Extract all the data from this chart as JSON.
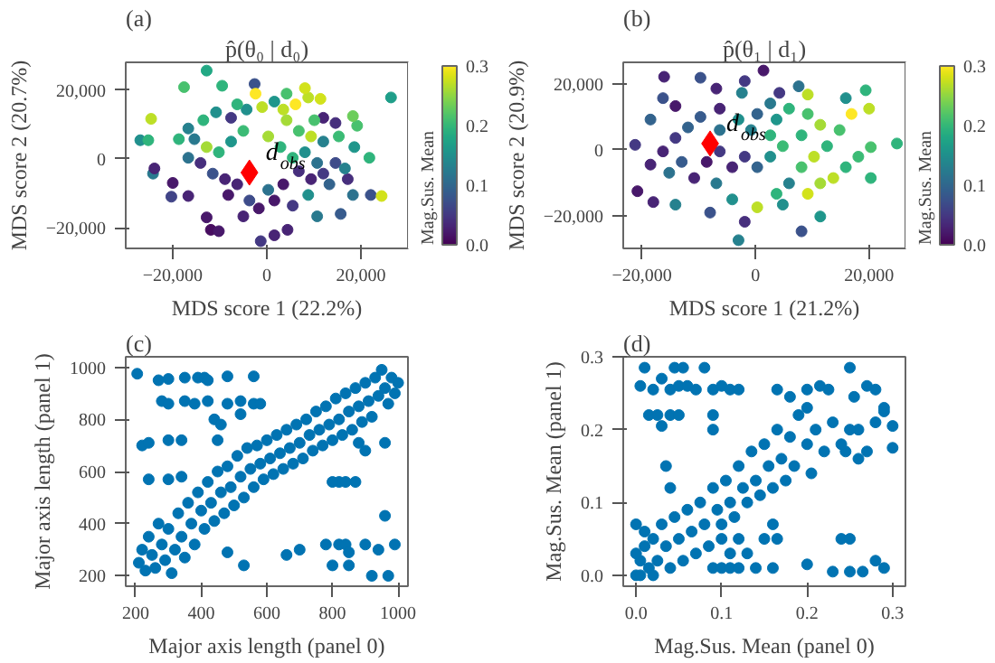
{
  "chart_data": [
    {
      "type": "scatter",
      "title": "p̂(θ₀ | d₀)",
      "annotations": [
        "(a)"
      ],
      "xlabel": "MDS score 1 (22.2%)",
      "ylabel": "MDS score 2 (20.7%)",
      "clabel": "Mag.Sus. Mean",
      "xlim": [
        -30000,
        30000
      ],
      "ylim": [
        -26000,
        28000
      ],
      "xticks": [
        {
          "value": -20000,
          "label": "−20,000"
        },
        0,
        {
          "value": 20000,
          "label": "20,000"
        }
      ],
      "yticks": [
        {
          "value": -20000,
          "label": "−20,000"
        },
        0,
        {
          "value": 20000,
          "label": "20,000"
        }
      ],
      "clim": [
        0,
        0.3
      ],
      "cticks": [
        {
          "value": 0,
          "label": "0.0"
        },
        0.1,
        0.2,
        0.3
      ],
      "marker": "circle",
      "series": [
        {
          "x": [
            -12800,
            26400,
            -2600,
            -17600,
            -9500,
            -24600,
            -26900,
            -25200,
            -24200,
            -23900,
            -20000,
            -20300,
            -16700,
            -12800,
            -11900,
            -10200,
            -1300,
            1600,
            4400,
            10700,
            15700,
            18300,
            22100,
            24400,
            21800,
            18600,
            19200,
            18300,
            15300,
            12000,
            11400,
            8800,
            6100,
            3500,
            4200,
            6800,
            9400,
            12000,
            -2400,
            -1000,
            -4300,
            -6300,
            -7600,
            -10800,
            -13500,
            -16700,
            -18700,
            -15400,
            -12800,
            -10200,
            -7600,
            -5000,
            300,
            2900,
            5500,
            8100,
            10700,
            14600,
            12000,
            9400,
            6800,
            3500,
            300,
            1600,
            -1700,
            -3700,
            -6300,
            -8900,
            -11500,
            -14100,
            -16700,
            -8200,
            -5000,
            5500,
            8800,
            13300,
            17200,
            16600,
            10100,
            14600,
            1600,
            4200,
            8100
          ],
          "values": [
            25600,
            17800,
            21700,
            20800,
            21200,
            11600,
            5400,
            5400,
            -4300,
            -2800,
            -7000,
            -11000,
            -10800,
            -17000,
            -20600,
            -21000,
            -23900,
            -22200,
            -20600,
            -16700,
            -16000,
            -10500,
            -10500,
            -10800,
            300,
            3400,
            9600,
            12400,
            6500,
            11900,
            17400,
            17800,
            15800,
            14300,
            11200,
            8100,
            6500,
            5000,
            18900,
            15000,
            14300,
            15800,
            11900,
            13500,
            11200,
            8800,
            5700,
            5700,
            3400,
            1900,
            5000,
            8100,
            6500,
            3400,
            300,
            1900,
            -1200,
            -1200,
            -4300,
            -5900,
            -3600,
            -7400,
            -9000,
            -12100,
            -14400,
            -12100,
            -7400,
            -5900,
            -4300,
            -1200,
            300,
            -10500,
            -16700,
            -13600,
            -10500,
            -7400,
            -5900,
            -2800,
            11200,
            10400,
            16600,
            18900,
            20500
          ],
          "colors": [
            "#22a884",
            "#1f9e89",
            "#3b528b",
            "#48c16e",
            "#2fb47c",
            "#bddf26",
            "#21908d",
            "#2fb47c",
            "#29798e",
            "#482475",
            "#48186a",
            "#414487",
            "#482475",
            "#48186a",
            "#470d60",
            "#48186a",
            "#443983",
            "#482475",
            "#482475",
            "#29798e",
            "#375b8d",
            "#2c728e",
            "#3b528b",
            "#d2e21b",
            "#2fb47c",
            "#1f968b",
            "#48c16e",
            "#6ccd5a",
            "#3bbb75",
            "#482475",
            "#d2e21b",
            "#bddf26",
            "#fde725",
            "#bddf26",
            "#a5db36",
            "#48c16e",
            "#bddf26",
            "#26818e",
            "#fde725",
            "#bddf26",
            "#21908d",
            "#2fb47c",
            "#443983",
            "#21908d",
            "#2fb47c",
            "#26818e",
            "#2fb47c",
            "#29798e",
            "#a5db36",
            "#2fb47c",
            "#1f968b",
            "#3bbb75",
            "#a5db36",
            "#2fb47c",
            "#2fb47c",
            "#21908d",
            "#2c728e",
            "#3e4c8a",
            "#443983",
            "#482475",
            "#472f7d",
            "#48186a",
            "#2c728e",
            "#48186a",
            "#48186a",
            "#3e4c8a",
            "#482475",
            "#482475",
            "#3b528b",
            "#472f7d",
            "#2c728e",
            "#48186a",
            "#482475",
            "#443983",
            "#21908d",
            "#33638d",
            "#472f7d",
            "#26818e",
            "#48c16e",
            "#472f7d",
            "#1f968b",
            "#48c16e",
            "#d2e21b"
          ]
        },
        {
          "name": "d$_{obs}$",
          "color": "#ff0000",
          "marker": "diamond",
          "x": [
            -3700
          ],
          "values": [
            -4000
          ]
        }
      ]
    },
    {
      "type": "scatter",
      "title": "p̂(θ₁ | d₁)",
      "annotations": [
        "(b)"
      ],
      "xlabel": "MDS score 1 (21.2%)",
      "ylabel": "MDS score 2 (20.9%)",
      "clabel": "Mag.Sus. Mean",
      "xlim": [
        -23300,
        26400
      ],
      "ylim": [
        -30000,
        26600
      ],
      "xticks": [
        {
          "value": -20000,
          "label": "−20,000"
        },
        0,
        {
          "value": 20000,
          "label": "20,000"
        }
      ],
      "yticks": [
        {
          "value": -20000,
          "label": "−20,000"
        },
        0,
        {
          "value": 20000,
          "label": "20,000"
        }
      ],
      "clim": [
        0,
        0.3
      ],
      "cticks": [
        {
          "value": 0,
          "label": "0.0"
        },
        0.1,
        0.2,
        0.3
      ],
      "marker": "circle",
      "series": [
        {
          "x": [
            -16100,
            -9700,
            -6900,
            -1900,
            1400,
            -2400,
            4200,
            7600,
            9200,
            15900,
            19400,
            20000,
            16900,
            24900,
            20300,
            18100,
            20300,
            13700,
            11400,
            11400,
            8100,
            -3000,
            -1900,
            -8000,
            -14100,
            -18000,
            -21200,
            -20800,
            -18500,
            -18500,
            -14100,
            -16300,
            -11900,
            -14100,
            -16300,
            -13000,
            -10800,
            -6900,
            -4100,
            300,
            3700,
            5900,
            8100,
            10300,
            12600,
            14800,
            11400,
            8100,
            4800,
            2600,
            300,
            -1900,
            -4100,
            -6300,
            -8600,
            -9700,
            -6300,
            -3000,
            300,
            3700,
            5900,
            2600,
            9200,
            -800,
            2600,
            -6300,
            15900,
            9200,
            4800,
            -15200
          ],
          "values": [
            22200,
            21900,
            18600,
            20900,
            24100,
            17300,
            17300,
            19300,
            16800,
            15700,
            18100,
            12500,
            10900,
            1900,
            800,
            -2100,
            -8600,
            -8600,
            -10200,
            -20300,
            -24800,
            -27500,
            -21900,
            -19100,
            -16700,
            -15900,
            1500,
            -12600,
            -4500,
            9200,
            13300,
            15700,
            6800,
            3600,
            -500,
            -3700,
            -8600,
            -10200,
            -15100,
            -17500,
            -13400,
            -10200,
            -5300,
            -2100,
            1100,
            6000,
            7600,
            4400,
            1100,
            -2100,
            -5300,
            -2100,
            -5300,
            -500,
            -3700,
            10000,
            12500,
            9200,
            10900,
            9200,
            12500,
            14100,
            10900,
            6000,
            4400,
            6000,
            -5300,
            -13400,
            -16700,
            -7000
          ],
          "colors": [
            "#482475",
            "#3b528b",
            "#482475",
            "#443983",
            "#48186a",
            "#26818e",
            "#443983",
            "#2c728e",
            "#bddf26",
            "#21908d",
            "#2fb47c",
            "#bddf26",
            "#fde725",
            "#2fb47c",
            "#48c16e",
            "#3bbb75",
            "#2fb47c",
            "#bddf26",
            "#a5db36",
            "#1f968b",
            "#3b528b",
            "#26818e",
            "#472f7d",
            "#3b528b",
            "#26818e",
            "#482475",
            "#443983",
            "#48186a",
            "#482475",
            "#33638d",
            "#48186a",
            "#3b528b",
            "#33638d",
            "#443983",
            "#482475",
            "#375b8d",
            "#482475",
            "#29798e",
            "#21908d",
            "#bddf26",
            "#2fb47c",
            "#26818e",
            "#48c16e",
            "#bddf26",
            "#2fb47c",
            "#48c16e",
            "#a5db36",
            "#2fb47c",
            "#3bbb75",
            "#21908d",
            "#33638d",
            "#443983",
            "#482475",
            "#443983",
            "#48186a",
            "#375b8d",
            "#482475",
            "#21908d",
            "#33638d",
            "#1f968b",
            "#2fb47c",
            "#29798e",
            "#48c16e",
            "#26818e",
            "#2fb47c",
            "#2c728e",
            "#2fb47c",
            "#d2e21b",
            "#21908d",
            "#2c728e"
          ]
        },
        {
          "name": "d$_{obs}$",
          "color": "#ff0000",
          "marker": "diamond",
          "x": [
            -8000
          ],
          "values": [
            1900
          ]
        }
      ]
    },
    {
      "type": "scatter",
      "annotations": [
        "(c)"
      ],
      "xlabel": "Major axis length (panel 0)",
      "ylabel": "Major axis length (panel 1)",
      "xlim": [
        170,
        1030
      ],
      "ylim": [
        160,
        1040
      ],
      "xticks": [
        200,
        400,
        600,
        800,
        1000
      ],
      "yticks": [
        200,
        400,
        600,
        800,
        1000
      ],
      "marker": "circle",
      "series": [
        {
          "color": "#0173b2",
          "x": [
            205,
            270,
            300,
            350,
            390,
            410,
            420,
            480,
            560,
            280,
            300,
            350,
            380,
            420,
            480,
            520,
            560,
            580,
            220,
            240,
            300,
            340,
            240,
            300,
            340,
            660,
            700,
            780,
            800,
            820,
            840,
            850,
            850,
            900,
            920,
            940,
            960,
            970,
            990,
            530,
            480,
            820,
            840,
            870,
            800,
            440,
            460,
            520,
            450,
            210,
            220,
            230,
            240,
            250,
            260,
            270,
            280,
            290,
            300,
            310,
            320,
            330,
            340,
            350,
            360,
            370,
            380,
            390,
            400,
            410,
            420,
            430,
            440,
            450,
            460,
            470,
            480,
            490,
            500,
            510,
            520,
            530,
            540,
            550,
            560,
            570,
            580,
            590,
            600,
            610,
            620,
            630,
            640,
            650,
            660,
            670,
            680,
            690,
            700,
            710,
            720,
            730,
            740,
            750,
            760,
            770,
            780,
            790,
            800,
            810,
            820,
            830,
            840,
            850,
            860,
            870,
            880,
            890,
            900,
            910,
            920,
            930,
            940,
            950,
            960,
            970,
            980,
            990,
            1000,
            880,
            960,
            900
          ],
          "values": [
            975,
            950,
            955,
            960,
            960,
            960,
            950,
            965,
            965,
            870,
            860,
            870,
            860,
            870,
            860,
            870,
            860,
            860,
            700,
            710,
            720,
            720,
            570,
            570,
            580,
            280,
            300,
            320,
            240,
            320,
            320,
            290,
            240,
            320,
            200,
            300,
            430,
            200,
            320,
            240,
            290,
            560,
            560,
            560,
            560,
            800,
            780,
            820,
            720,
            250,
            300,
            220,
            350,
            280,
            230,
            400,
            320,
            260,
            380,
            210,
            300,
            440,
            350,
            270,
            480,
            400,
            320,
            520,
            450,
            380,
            560,
            480,
            410,
            600,
            520,
            440,
            620,
            540,
            470,
            660,
            580,
            500,
            690,
            610,
            540,
            700,
            630,
            570,
            720,
            650,
            590,
            740,
            670,
            610,
            760,
            690,
            630,
            780,
            710,
            650,
            800,
            740,
            680,
            830,
            760,
            700,
            850,
            780,
            720,
            880,
            800,
            740,
            900,
            830,
            760,
            920,
            850,
            790,
            940,
            870,
            810,
            960,
            890,
            990,
            920,
            860,
            960,
            900,
            940,
            710,
            710,
            680
          ]
        }
      ]
    },
    {
      "type": "scatter",
      "annotations": [
        "(d)"
      ],
      "xlabel": "Mag.Sus. Mean (panel 0)",
      "ylabel": "Mag.Sus. Mean (panel 1)",
      "xlim": [
        -0.015,
        0.315
      ],
      "ylim": [
        -0.015,
        0.3
      ],
      "xticks": [
        {
          "value": 0,
          "label": "0.0"
        },
        0.1,
        0.2,
        0.3
      ],
      "yticks": [
        {
          "value": 0,
          "label": "0.0"
        },
        0.1,
        0.2,
        0.3
      ],
      "marker": "circle",
      "series": [
        {
          "color": "#0173b2",
          "x": [
            0.01,
            0.005,
            0.02,
            0.03,
            0.04,
            0.045,
            0.05,
            0.055,
            0.06,
            0.07,
            0.08,
            0.09,
            0.1,
            0.11,
            0.12,
            0.015,
            0.025,
            0.03,
            0.04,
            0.05,
            0.09,
            0.09,
            0.035,
            0.04,
            0.09,
            0.1,
            0.11,
            0.12,
            0.14,
            0.16,
            0.2,
            0.23,
            0.25,
            0.265,
            0.28,
            0.29,
            0.24,
            0.25,
            0.11,
            0.13,
            0.1,
            0.12,
            0.15,
            0.165,
            0.16,
            0.165,
            0.2,
            0.215,
            0.225,
            0.25,
            0.27,
            0.28,
            0.29,
            0.3,
            0.3,
            0.255,
            0.26,
            0.245,
            0.27,
            0.18,
            0.2,
            0.0,
            0.005,
            0.01,
            0.0,
            0.015,
            0.02,
            0.025,
            0.03,
            0.035,
            0.04,
            0.045,
            0.05,
            0.055,
            0.06,
            0.065,
            0.07,
            0.075,
            0.08,
            0.085,
            0.09,
            0.095,
            0.1,
            0.105,
            0.11,
            0.115,
            0.12,
            0.125,
            0.13,
            0.135,
            0.14,
            0.145,
            0.15,
            0.155,
            0.16,
            0.165,
            0.17,
            0.175,
            0.18,
            0.185,
            0.19,
            0.2,
            0.205,
            0.21,
            0.22,
            0.23,
            0.24,
            0.25,
            0.26,
            0.28,
            0.29,
            0.0,
            0.005,
            0.02,
            0.01
          ],
          "values": [
            0.285,
            0.26,
            0.255,
            0.27,
            0.255,
            0.285,
            0.26,
            0.285,
            0.26,
            0.255,
            0.285,
            0.255,
            0.26,
            0.255,
            0.255,
            0.22,
            0.22,
            0.205,
            0.22,
            0.22,
            0.2,
            0.22,
            0.15,
            0.12,
            0.01,
            0.01,
            0.01,
            0.01,
            0.01,
            0.01,
            0.015,
            0.005,
            0.005,
            0.005,
            0.02,
            0.01,
            0.05,
            0.05,
            0.03,
            0.03,
            0.05,
            0.05,
            0.05,
            0.05,
            0.07,
            0.255,
            0.255,
            0.26,
            0.255,
            0.285,
            0.26,
            0.255,
            0.225,
            0.205,
            0.175,
            0.245,
            0.2,
            0.17,
            0.17,
            0.245,
            0.23,
            0.0,
            0.02,
            0.04,
            0.07,
            0.01,
            0.05,
            0.02,
            0.07,
            0.04,
            0.01,
            0.08,
            0.05,
            0.02,
            0.09,
            0.06,
            0.03,
            0.1,
            0.07,
            0.04,
            0.12,
            0.09,
            0.07,
            0.13,
            0.1,
            0.08,
            0.15,
            0.12,
            0.1,
            0.17,
            0.13,
            0.11,
            0.18,
            0.15,
            0.12,
            0.2,
            0.16,
            0.13,
            0.19,
            0.15,
            0.22,
            0.18,
            0.14,
            0.2,
            0.17,
            0.21,
            0.18,
            0.2,
            0.16,
            0.21,
            0.23,
            0.03,
            0.0,
            0.0,
            0.06
          ]
        }
      ]
    }
  ]
}
